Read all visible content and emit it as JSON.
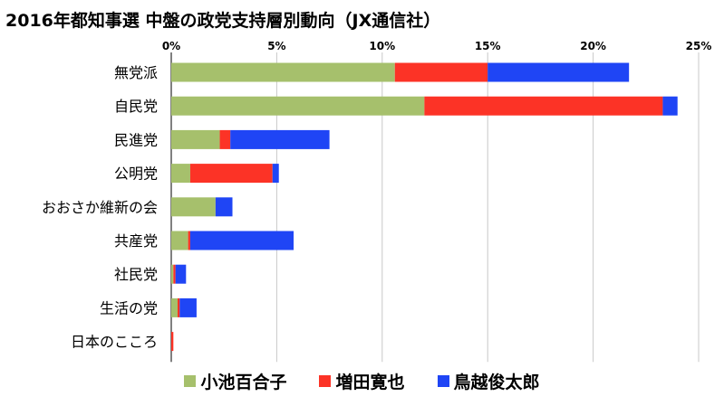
{
  "chart_data": {
    "type": "bar",
    "orientation": "horizontal",
    "stacked": true,
    "title": "2016年都知事選 中盤の政党支持層別動向（JX通信社）",
    "categories": [
      "無党派",
      "自民党",
      "民進党",
      "公明党",
      "おおさか維新の会",
      "共産党",
      "社民党",
      "生活の党",
      "日本のこころ"
    ],
    "series": [
      {
        "name": "小池百合子",
        "color": "#a6c06c",
        "values": [
          10.6,
          12.0,
          2.3,
          0.9,
          2.1,
          0.8,
          0.1,
          0.3,
          0.0
        ]
      },
      {
        "name": "増田寛也",
        "color": "#fc3326",
        "values": [
          4.4,
          11.3,
          0.5,
          3.9,
          0.0,
          0.1,
          0.1,
          0.1,
          0.1
        ]
      },
      {
        "name": "鳥越俊太郎",
        "color": "#1f45f5",
        "values": [
          6.7,
          0.7,
          4.7,
          0.3,
          0.8,
          4.9,
          0.5,
          0.8,
          0.0
        ]
      }
    ],
    "xlim": [
      0,
      25
    ],
    "xticks": [
      0,
      5,
      10,
      15,
      20,
      25
    ],
    "xtick_labels": [
      "0%",
      "5%",
      "10%",
      "15%",
      "20%",
      "25%"
    ],
    "xaxis_position": "top",
    "grid": "vertical",
    "legend_position": "bottom"
  }
}
